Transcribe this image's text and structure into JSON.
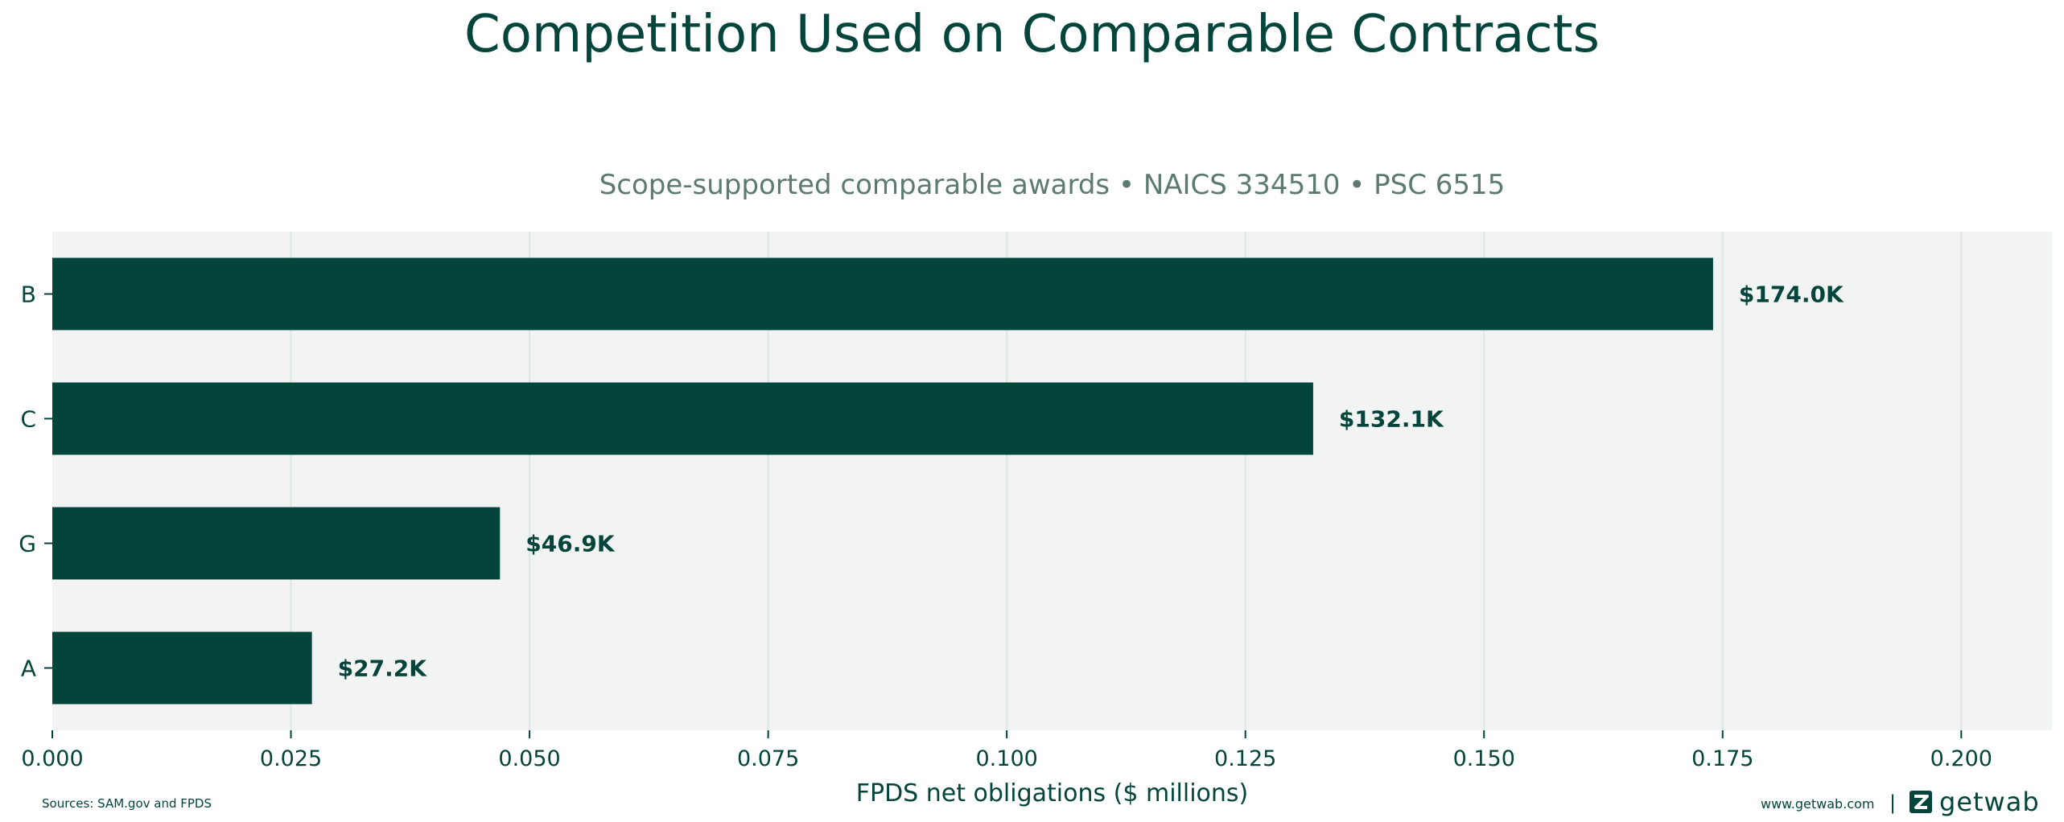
{
  "chart_data": {
    "type": "bar",
    "orientation": "horizontal",
    "title": "Competition Used on Comparable Contracts",
    "subtitle": "Scope-supported comparable awards • NAICS 334510 • PSC 6515",
    "categories": [
      "B",
      "C",
      "G",
      "A"
    ],
    "values": [
      0.174,
      0.1321,
      0.0469,
      0.0272
    ],
    "data_labels": [
      "$174.0K",
      "$132.1K",
      "$46.9K",
      "$27.2K"
    ],
    "xlabel": "FPDS net obligations ($ millions)",
    "ylabel": "",
    "xlim": [
      0,
      0.2095
    ],
    "x_ticks": [
      0.0,
      0.025,
      0.05,
      0.075,
      0.1,
      0.125,
      0.15,
      0.175,
      0.2
    ],
    "x_tick_labels": [
      "0.000",
      "0.025",
      "0.050",
      "0.075",
      "0.100",
      "0.125",
      "0.150",
      "0.175",
      "0.200"
    ],
    "grid": "vertical",
    "bar_color": "#03453A",
    "background_color": "#F2F4F3",
    "grid_color": "#DCE8E3"
  },
  "footer": {
    "source": "Sources: SAM.gov and FPDS",
    "url": "www.getwab.com",
    "separator": "|",
    "brand": "getwab",
    "brand_icon": "getwab-logo-icon"
  }
}
